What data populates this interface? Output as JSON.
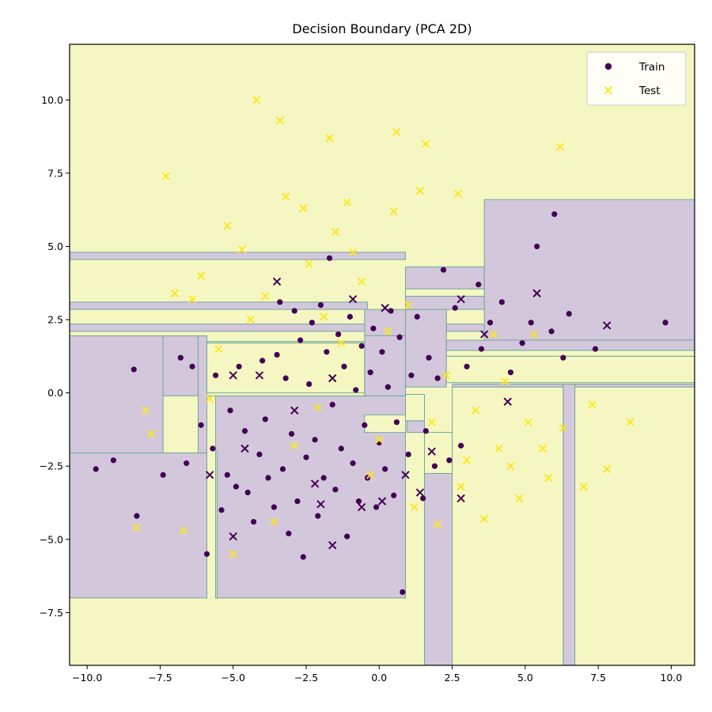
{
  "chart_data": {
    "type": "scatter",
    "title": "Decision Boundary (PCA 2D)",
    "xlabel": "",
    "ylabel": "",
    "xlim": [
      -10.6,
      10.8
    ],
    "ylim": [
      -9.3,
      11.9
    ],
    "xticks": [
      -10.0,
      -7.5,
      -5.0,
      -2.5,
      0.0,
      2.5,
      5.0,
      7.5,
      10.0
    ],
    "xtick_labels": [
      "−10.0",
      "−7.5",
      "−5.0",
      "−2.5",
      "0.0",
      "2.5",
      "5.0",
      "7.5",
      "10.0"
    ],
    "yticks": [
      10.0,
      7.5,
      5.0,
      2.5,
      0.0,
      -2.5,
      -5.0,
      -7.5
    ],
    "ytick_labels": [
      "10.0",
      "7.5",
      "5.0",
      "2.5",
      "0.0",
      "−2.5",
      "−5.0",
      "−7.5"
    ],
    "grid": false,
    "legend": {
      "placement": "top-right",
      "entries": [
        {
          "label": "Train",
          "marker": "circle",
          "color": "#440154"
        },
        {
          "label": "Test",
          "marker": "x",
          "color": "#fde725"
        }
      ]
    },
    "colors": {
      "class0": "#440154",
      "class1": "#fde725",
      "region0": "#d3c7dc",
      "region1": "#f5f7c3",
      "boundary": "#6fa89a"
    },
    "class0_regions": [
      [
        -10.6,
        2.1,
        10.8,
        2.35
      ],
      [
        -10.6,
        2.85,
        -0.4,
        3.1
      ],
      [
        -10.6,
        4.55,
        0.9,
        4.8
      ],
      [
        -10.6,
        -2.05,
        -7.4,
        1.95
      ],
      [
        -10.6,
        -7.0,
        -5.9,
        -2.05
      ],
      [
        -7.4,
        -0.1,
        -6.2,
        1.95
      ],
      [
        -6.2,
        -2.05,
        -5.9,
        1.95
      ],
      [
        -5.9,
        -0.1,
        -0.5,
        1.75
      ],
      [
        -5.9,
        -0.1,
        0.9,
        1.75
      ],
      [
        -5.6,
        -7.0,
        0.9,
        -0.1
      ],
      [
        -0.5,
        1.95,
        2.3,
        2.85
      ],
      [
        -0.5,
        -0.1,
        0.9,
        1.95
      ],
      [
        0.9,
        0.2,
        2.3,
        2.85
      ],
      [
        0.9,
        2.85,
        3.6,
        3.3
      ],
      [
        0.9,
        3.3,
        3.6,
        4.3
      ],
      [
        3.6,
        1.8,
        10.8,
        6.6
      ],
      [
        2.3,
        1.45,
        10.8,
        1.8
      ],
      [
        1.55,
        -9.3,
        2.5,
        -2.75
      ],
      [
        0.95,
        -1.35,
        1.55,
        -0.95
      ],
      [
        2.5,
        0.2,
        6.3,
        0.3
      ],
      [
        6.3,
        -9.3,
        6.7,
        0.3
      ],
      [
        6.7,
        0.2,
        10.8,
        0.3
      ]
    ],
    "class1_regions": [
      [
        -5.9,
        -0.1,
        -0.5,
        1.75
      ],
      [
        -5.9,
        0.0,
        -0.5,
        1.7
      ],
      [
        -7.4,
        -2.05,
        -6.2,
        -0.1
      ],
      [
        -0.5,
        -1.35,
        0.9,
        -0.75
      ],
      [
        0.9,
        -0.95,
        1.55,
        -0.05
      ],
      [
        1.55,
        -2.75,
        2.5,
        -1.35
      ],
      [
        2.5,
        -9.3,
        6.3,
        0.2
      ],
      [
        6.7,
        -9.3,
        10.8,
        0.2
      ],
      [
        2.3,
        1.25,
        10.8,
        1.45
      ],
      [
        2.3,
        0.35,
        10.8,
        1.25
      ],
      [
        0.9,
        3.3,
        3.6,
        3.55
      ],
      [
        -5.6,
        -7.0,
        -5.55,
        -2.0
      ]
    ],
    "series": [
      {
        "name": "Train",
        "marker": "circle",
        "color": "#440154",
        "points": [
          [
            -9.7,
            -2.6
          ],
          [
            -9.1,
            -2.3
          ],
          [
            -8.4,
            0.8
          ],
          [
            -8.3,
            -4.2
          ],
          [
            -7.4,
            -2.8
          ],
          [
            -6.8,
            1.2
          ],
          [
            -6.6,
            -2.4
          ],
          [
            -6.4,
            0.9
          ],
          [
            -6.1,
            -1.1
          ],
          [
            -5.9,
            -5.5
          ],
          [
            -5.7,
            -1.9
          ],
          [
            -5.6,
            0.6
          ],
          [
            -5.4,
            -4.0
          ],
          [
            -5.2,
            -2.8
          ],
          [
            -5.1,
            -0.6
          ],
          [
            -4.9,
            -3.2
          ],
          [
            -4.8,
            0.9
          ],
          [
            -4.6,
            -1.3
          ],
          [
            -4.5,
            -3.4
          ],
          [
            -4.3,
            -4.4
          ],
          [
            -4.1,
            -2.1
          ],
          [
            -4.0,
            1.1
          ],
          [
            -3.9,
            -0.9
          ],
          [
            -3.8,
            -2.9
          ],
          [
            -3.6,
            -3.9
          ],
          [
            -3.5,
            1.3
          ],
          [
            -3.4,
            3.1
          ],
          [
            -3.3,
            -2.6
          ],
          [
            -3.2,
            0.5
          ],
          [
            -3.1,
            -4.8
          ],
          [
            -3.0,
            -1.4
          ],
          [
            -2.9,
            2.8
          ],
          [
            -2.8,
            -3.7
          ],
          [
            -2.7,
            1.8
          ],
          [
            -2.6,
            -5.6
          ],
          [
            -2.5,
            -2.2
          ],
          [
            -2.4,
            0.3
          ],
          [
            -2.3,
            2.4
          ],
          [
            -2.2,
            -1.6
          ],
          [
            -2.1,
            -4.2
          ],
          [
            -2.0,
            3.0
          ],
          [
            -1.9,
            -2.9
          ],
          [
            -1.8,
            1.4
          ],
          [
            -1.7,
            4.6
          ],
          [
            -1.6,
            -0.4
          ],
          [
            -1.5,
            -3.3
          ],
          [
            -1.4,
            2.0
          ],
          [
            -1.3,
            -1.9
          ],
          [
            -1.2,
            0.9
          ],
          [
            -1.1,
            -4.9
          ],
          [
            -1.0,
            2.6
          ],
          [
            -0.9,
            -2.4
          ],
          [
            -0.8,
            0.1
          ],
          [
            -0.7,
            -3.7
          ],
          [
            -0.6,
            1.6
          ],
          [
            -0.5,
            -1.1
          ],
          [
            -0.4,
            -2.9
          ],
          [
            -0.3,
            0.7
          ],
          [
            -0.2,
            2.2
          ],
          [
            -0.1,
            -3.9
          ],
          [
            0.0,
            -1.7
          ],
          [
            0.1,
            1.4
          ],
          [
            0.2,
            -2.6
          ],
          [
            0.3,
            0.2
          ],
          [
            0.4,
            2.8
          ],
          [
            0.5,
            -3.5
          ],
          [
            0.6,
            -1.0
          ],
          [
            0.7,
            1.9
          ],
          [
            0.8,
            -6.8
          ],
          [
            1.0,
            -2.1
          ],
          [
            1.1,
            0.6
          ],
          [
            1.3,
            2.6
          ],
          [
            1.5,
            -3.6
          ],
          [
            1.6,
            -1.3
          ],
          [
            1.7,
            1.2
          ],
          [
            1.9,
            -2.5
          ],
          [
            2.0,
            0.5
          ],
          [
            2.2,
            4.2
          ],
          [
            2.4,
            -2.3
          ],
          [
            2.6,
            2.9
          ],
          [
            2.8,
            -1.8
          ],
          [
            3.0,
            0.9
          ],
          [
            3.4,
            3.7
          ],
          [
            3.5,
            1.5
          ],
          [
            3.8,
            2.4
          ],
          [
            4.2,
            3.1
          ],
          [
            4.5,
            0.7
          ],
          [
            4.9,
            1.7
          ],
          [
            5.2,
            2.4
          ],
          [
            5.4,
            5.0
          ],
          [
            5.9,
            2.1
          ],
          [
            6.0,
            6.1
          ],
          [
            6.3,
            1.2
          ],
          [
            6.5,
            2.7
          ],
          [
            7.4,
            1.5
          ],
          [
            9.8,
            2.4
          ]
        ]
      },
      {
        "name": "Test",
        "marker": "x",
        "color": "#fde725",
        "points": [
          [
            -8.3,
            -4.6
          ],
          [
            -8.0,
            -0.6
          ],
          [
            -7.8,
            -1.4
          ],
          [
            -7.3,
            7.4
          ],
          [
            -7.0,
            3.4
          ],
          [
            -6.7,
            -4.7
          ],
          [
            -6.4,
            3.2
          ],
          [
            -6.1,
            4.0
          ],
          [
            -5.8,
            -0.2
          ],
          [
            -5.5,
            1.5
          ],
          [
            -5.2,
            5.7
          ],
          [
            -5.0,
            -5.5
          ],
          [
            -4.7,
            4.9
          ],
          [
            -4.4,
            2.5
          ],
          [
            -4.2,
            10.0
          ],
          [
            -3.9,
            3.3
          ],
          [
            -3.6,
            -4.4
          ],
          [
            -3.4,
            9.3
          ],
          [
            -3.2,
            6.7
          ],
          [
            -2.9,
            -1.8
          ],
          [
            -2.6,
            6.3
          ],
          [
            -2.4,
            4.4
          ],
          [
            -2.1,
            -0.5
          ],
          [
            -1.9,
            2.6
          ],
          [
            -1.7,
            8.7
          ],
          [
            -1.5,
            5.5
          ],
          [
            -1.3,
            1.7
          ],
          [
            -1.1,
            6.5
          ],
          [
            -0.9,
            4.8
          ],
          [
            -0.6,
            3.8
          ],
          [
            -0.3,
            -2.8
          ],
          [
            0.0,
            -1.6
          ],
          [
            0.3,
            2.1
          ],
          [
            0.5,
            6.2
          ],
          [
            0.6,
            8.9
          ],
          [
            1.0,
            3.0
          ],
          [
            1.2,
            -3.9
          ],
          [
            1.4,
            6.9
          ],
          [
            1.6,
            8.5
          ],
          [
            1.8,
            -1.0
          ],
          [
            2.0,
            -4.5
          ],
          [
            2.3,
            0.6
          ],
          [
            2.7,
            6.8
          ],
          [
            2.8,
            -3.2
          ],
          [
            3.0,
            -2.3
          ],
          [
            3.3,
            -0.6
          ],
          [
            3.6,
            -4.3
          ],
          [
            3.9,
            2.0
          ],
          [
            4.1,
            -1.9
          ],
          [
            4.3,
            0.4
          ],
          [
            4.5,
            -2.5
          ],
          [
            4.8,
            -3.6
          ],
          [
            5.1,
            -1.0
          ],
          [
            5.3,
            2.0
          ],
          [
            5.6,
            -1.9
          ],
          [
            5.8,
            -2.9
          ],
          [
            6.2,
            8.4
          ],
          [
            6.3,
            -1.2
          ],
          [
            7.0,
            -3.2
          ],
          [
            7.3,
            -0.4
          ],
          [
            7.8,
            -2.6
          ],
          [
            8.6,
            -1.0
          ]
        ]
      }
    ]
  }
}
